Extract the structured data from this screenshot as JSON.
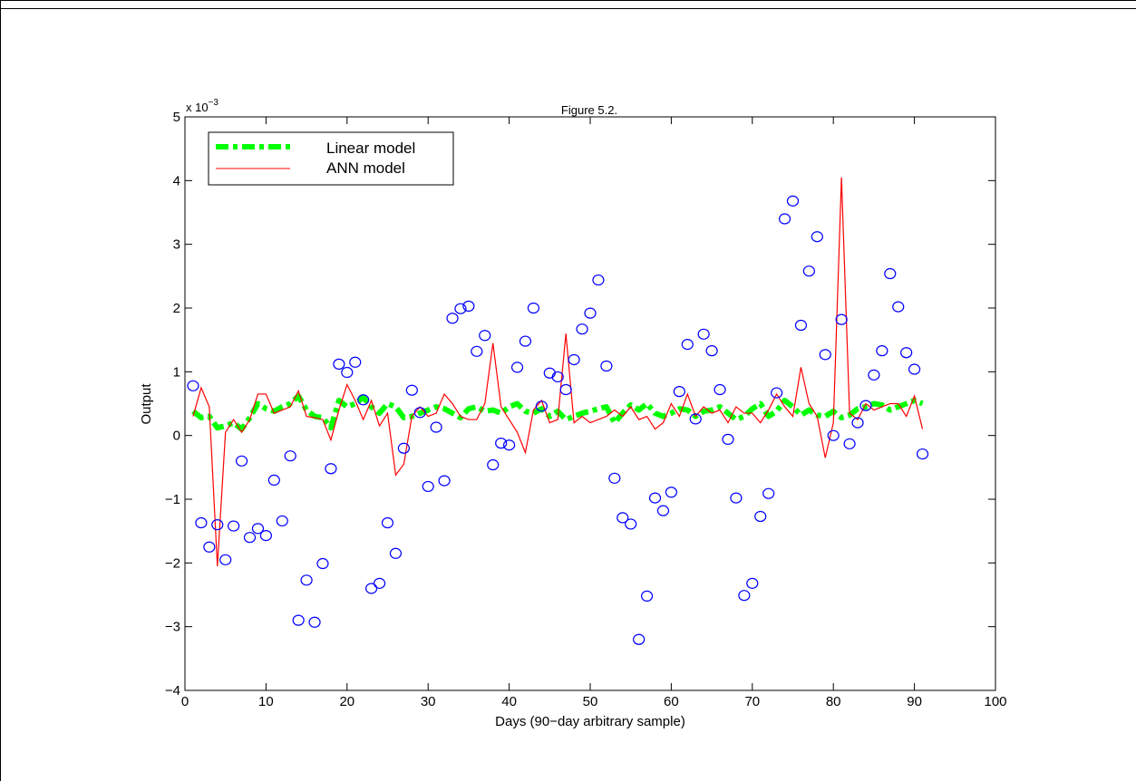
{
  "chart_data": {
    "type": "scatter",
    "title": "Figure 5.2.",
    "xlabel": "Days (90−day arbitrary sample)",
    "ylabel": "Output",
    "y_exponent_label": "x 10",
    "y_exponent_power": "−3",
    "xlim": [
      0,
      100
    ],
    "ylim": [
      -4,
      5
    ],
    "x_ticks": [
      0,
      10,
      20,
      30,
      40,
      50,
      60,
      70,
      80,
      90,
      100
    ],
    "y_ticks": [
      -4,
      -3,
      -2,
      -1,
      0,
      1,
      2,
      3,
      4,
      5
    ],
    "x_tick_labels": [
      "0",
      "10",
      "20",
      "30",
      "40",
      "50",
      "60",
      "70",
      "80",
      "90",
      "100"
    ],
    "y_tick_labels": [
      "−4",
      "−3",
      "−2",
      "−1",
      "0",
      "1",
      "2",
      "3",
      "4",
      "5"
    ],
    "grid": false,
    "legend_position": "top-left",
    "colors": {
      "observed": "#0000ff",
      "linear": "#00ff00",
      "ann": "#ff0000"
    },
    "observed": {
      "x": [
        1,
        2,
        3,
        4,
        5,
        6,
        7,
        8,
        9,
        10,
        11,
        12,
        13,
        14,
        15,
        16,
        17,
        18,
        19,
        20,
        21,
        22,
        23,
        24,
        25,
        26,
        27,
        28,
        29,
        30,
        31,
        32,
        33,
        34,
        35,
        36,
        37,
        38,
        39,
        40,
        41,
        42,
        43,
        44,
        45,
        46,
        47,
        48,
        49,
        50,
        51,
        52,
        53,
        54,
        55,
        56,
        57,
        58,
        59,
        60,
        61,
        62,
        63,
        64,
        65,
        66,
        67,
        68,
        69,
        70,
        71,
        72,
        73,
        74,
        75,
        76,
        77,
        78,
        79,
        80,
        81,
        82,
        83,
        84,
        85,
        86,
        87,
        88,
        89,
        90,
        91
      ],
      "y": [
        0.78,
        -1.37,
        -1.75,
        -1.4,
        -1.95,
        -1.42,
        -0.4,
        -1.6,
        -1.46,
        -1.57,
        -0.7,
        -1.34,
        -0.32,
        -2.9,
        -2.27,
        -2.93,
        -2.01,
        -0.52,
        1.12,
        0.99,
        1.15,
        0.56,
        -2.4,
        -2.32,
        -1.37,
        -1.85,
        -0.2,
        0.71,
        0.36,
        -0.8,
        0.13,
        -0.71,
        1.84,
        1.99,
        2.03,
        1.32,
        1.57,
        -0.46,
        -0.12,
        -0.15,
        1.07,
        1.48,
        2.0,
        0.46,
        0.98,
        0.92,
        0.72,
        1.19,
        1.67,
        1.92,
        2.44,
        1.09,
        -0.67,
        -1.29,
        -1.39,
        -3.2,
        -2.52,
        -0.98,
        -1.18,
        -0.89,
        0.69,
        1.43,
        0.26,
        1.59,
        1.33,
        0.72,
        -0.06,
        -0.98,
        -2.51,
        -2.32,
        -1.27,
        -0.91,
        0.67,
        3.4,
        3.68,
        1.73,
        2.58,
        3.12,
        1.27,
        0.0,
        1.82,
        -0.13,
        0.2,
        0.47,
        0.95,
        1.33,
        2.54,
        2.02,
        1.3,
        1.04,
        -0.29
      ]
    },
    "series": [
      {
        "name": "Linear model",
        "x": [
          1,
          2,
          3,
          4,
          5,
          6,
          7,
          8,
          9,
          10,
          11,
          12,
          13,
          14,
          15,
          16,
          17,
          18,
          19,
          20,
          21,
          22,
          23,
          24,
          25,
          26,
          27,
          28,
          29,
          30,
          31,
          32,
          33,
          34,
          35,
          36,
          37,
          38,
          39,
          40,
          41,
          42,
          43,
          44,
          45,
          46,
          47,
          48,
          49,
          50,
          51,
          52,
          53,
          54,
          55,
          56,
          57,
          58,
          59,
          60,
          61,
          62,
          63,
          64,
          65,
          66,
          67,
          68,
          69,
          70,
          71,
          72,
          73,
          74,
          75,
          76,
          77,
          78,
          79,
          80,
          81,
          82,
          83,
          84,
          85,
          86,
          87,
          88,
          89,
          90,
          91
        ],
        "y": [
          0.38,
          0.28,
          0.3,
          0.12,
          0.15,
          0.2,
          0.1,
          0.28,
          0.5,
          0.42,
          0.38,
          0.45,
          0.5,
          0.62,
          0.4,
          0.3,
          0.28,
          0.12,
          0.55,
          0.45,
          0.5,
          0.6,
          0.45,
          0.35,
          0.5,
          0.45,
          0.28,
          0.3,
          0.35,
          0.4,
          0.45,
          0.42,
          0.35,
          0.28,
          0.42,
          0.45,
          0.38,
          0.4,
          0.35,
          0.45,
          0.5,
          0.38,
          0.35,
          0.42,
          0.3,
          0.38,
          0.25,
          0.3,
          0.35,
          0.38,
          0.42,
          0.45,
          0.2,
          0.35,
          0.48,
          0.4,
          0.5,
          0.35,
          0.3,
          0.35,
          0.42,
          0.4,
          0.3,
          0.38,
          0.4,
          0.45,
          0.35,
          0.25,
          0.3,
          0.42,
          0.5,
          0.3,
          0.38,
          0.55,
          0.45,
          0.32,
          0.4,
          0.32,
          0.3,
          0.38,
          0.28,
          0.32,
          0.42,
          0.45,
          0.5,
          0.48,
          0.4,
          0.45,
          0.5,
          0.55,
          0.5
        ]
      },
      {
        "name": "ANN model",
        "x": [
          1,
          2,
          3,
          4,
          5,
          6,
          7,
          8,
          9,
          10,
          11,
          12,
          13,
          14,
          15,
          16,
          17,
          18,
          19,
          20,
          21,
          22,
          23,
          24,
          25,
          26,
          27,
          28,
          29,
          30,
          31,
          32,
          33,
          34,
          35,
          36,
          37,
          38,
          39,
          40,
          41,
          42,
          43,
          44,
          45,
          46,
          47,
          48,
          49,
          50,
          51,
          52,
          53,
          54,
          55,
          56,
          57,
          58,
          59,
          60,
          61,
          62,
          63,
          64,
          65,
          66,
          67,
          68,
          69,
          70,
          71,
          72,
          73,
          74,
          75,
          76,
          77,
          78,
          79,
          80,
          81,
          82,
          83,
          84,
          85,
          86,
          87,
          88,
          89,
          90,
          91
        ],
        "y": [
          0.3,
          0.75,
          0.45,
          -2.05,
          0.05,
          0.25,
          0.05,
          0.25,
          0.65,
          0.65,
          0.35,
          0.4,
          0.45,
          0.7,
          0.3,
          0.28,
          0.25,
          -0.07,
          0.4,
          0.8,
          0.55,
          0.25,
          0.55,
          0.15,
          0.35,
          -0.62,
          -0.45,
          0.3,
          0.45,
          0.3,
          0.35,
          0.65,
          0.5,
          0.3,
          0.25,
          0.25,
          0.5,
          1.45,
          0.45,
          0.25,
          0.05,
          -0.27,
          0.4,
          0.55,
          0.2,
          0.25,
          1.6,
          0.2,
          0.3,
          0.2,
          0.25,
          0.3,
          0.4,
          0.3,
          0.45,
          0.25,
          0.3,
          0.1,
          0.2,
          0.5,
          0.3,
          0.65,
          0.3,
          0.45,
          0.35,
          0.4,
          0.2,
          0.45,
          0.35,
          0.35,
          0.2,
          0.4,
          0.65,
          0.45,
          0.3,
          1.07,
          0.5,
          0.3,
          -0.35,
          0.2,
          4.05,
          0.35,
          0.25,
          0.5,
          0.4,
          0.45,
          0.5,
          0.5,
          0.3,
          0.62,
          0.1
        ]
      }
    ]
  }
}
